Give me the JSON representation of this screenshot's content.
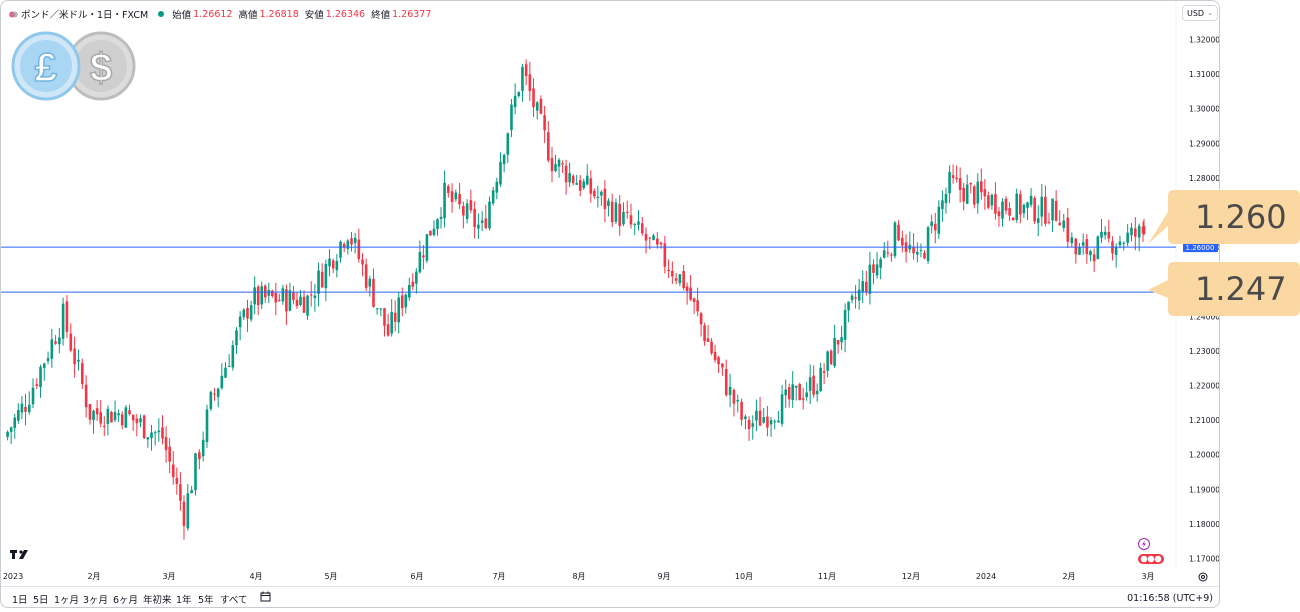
{
  "legend": {
    "title": "ポンド／米ドル・1日・FXCM",
    "open_label": "始値",
    "open_value": "1.26612",
    "high_label": "高値",
    "high_value": "1.26818",
    "low_label": "安値",
    "low_value": "1.26346",
    "close_label": "終値",
    "close_value": "1.26377"
  },
  "currency_button": "USD",
  "price_axis": {
    "ticks": [
      "1.32000",
      "1.31000",
      "1.30000",
      "1.29000",
      "1.28000",
      "1.27000",
      "1.26000",
      "1.25000",
      "1.24000",
      "1.23000",
      "1.22000",
      "1.21000",
      "1.20000",
      "1.19000",
      "1.18000",
      "1.17000"
    ],
    "current_price_label": "1.26000"
  },
  "time_axis": {
    "labels": [
      "2023",
      "2月",
      "3月",
      "4月",
      "5月",
      "6月",
      "7月",
      "8月",
      "9月",
      "10月",
      "11月",
      "12月",
      "2024",
      "2月",
      "3月"
    ]
  },
  "horizontal_lines": [
    {
      "label": "1.260",
      "price": 1.26,
      "color": "#2962ff"
    },
    {
      "label": "1.247",
      "price": 1.247,
      "color": "#2962ff"
    }
  ],
  "bottom_bar": {
    "ranges": [
      "1日",
      "5日",
      "1ヶ月",
      "3ヶ月",
      "6ヶ月",
      "年初来",
      "1年",
      "5年",
      "すべて"
    ],
    "clock": "01:16:58 (UTC+9)"
  },
  "colors": {
    "up": "#089981",
    "down": "#f23645",
    "line": "#2962ff",
    "callout": "#fbd8a2"
  },
  "icons": [
    "pound-dollar-logo",
    "tradingview-logo",
    "calendar-goto-icon",
    "settings-icon",
    "lightning-icon",
    "flag-icon"
  ],
  "chart_data": {
    "type": "candlestick",
    "title": "ポンド／米ドル・1日・FXCM",
    "x_range": [
      "2023-01",
      "2024-03"
    ],
    "ylim": [
      1.165,
      1.325
    ],
    "grid": false,
    "close_anchor_points": [
      {
        "x": "2023-01-02",
        "y": 1.205
      },
      {
        "x": "2023-01-10",
        "y": 1.215
      },
      {
        "x": "2023-01-24",
        "y": 1.24
      },
      {
        "x": "2023-02-03",
        "y": 1.212
      },
      {
        "x": "2023-02-15",
        "y": 1.212
      },
      {
        "x": "2023-03-02",
        "y": 1.205
      },
      {
        "x": "2023-03-10",
        "y": 1.183
      },
      {
        "x": "2023-03-20",
        "y": 1.215
      },
      {
        "x": "2023-04-04",
        "y": 1.245
      },
      {
        "x": "2023-04-25",
        "y": 1.245
      },
      {
        "x": "2023-05-10",
        "y": 1.265
      },
      {
        "x": "2023-05-25",
        "y": 1.235
      },
      {
        "x": "2023-06-15",
        "y": 1.275
      },
      {
        "x": "2023-06-29",
        "y": 1.265
      },
      {
        "x": "2023-07-14",
        "y": 1.311
      },
      {
        "x": "2023-07-25",
        "y": 1.285
      },
      {
        "x": "2023-08-15",
        "y": 1.272
      },
      {
        "x": "2023-08-29",
        "y": 1.262
      },
      {
        "x": "2023-09-12",
        "y": 1.25
      },
      {
        "x": "2023-09-25",
        "y": 1.225
      },
      {
        "x": "2023-10-05",
        "y": 1.208
      },
      {
        "x": "2023-10-20",
        "y": 1.215
      },
      {
        "x": "2023-11-02",
        "y": 1.222
      },
      {
        "x": "2023-11-15",
        "y": 1.245
      },
      {
        "x": "2023-12-01",
        "y": 1.265
      },
      {
        "x": "2023-12-08",
        "y": 1.255
      },
      {
        "x": "2023-12-20",
        "y": 1.278
      },
      {
        "x": "2024-01-10",
        "y": 1.272
      },
      {
        "x": "2024-01-30",
        "y": 1.27
      },
      {
        "x": "2024-02-05",
        "y": 1.258
      },
      {
        "x": "2024-02-20",
        "y": 1.262
      },
      {
        "x": "2024-03-01",
        "y": 1.264
      }
    ],
    "last_candle": {
      "open": 1.26612,
      "high": 1.26818,
      "low": 1.26346,
      "close": 1.26377
    }
  }
}
